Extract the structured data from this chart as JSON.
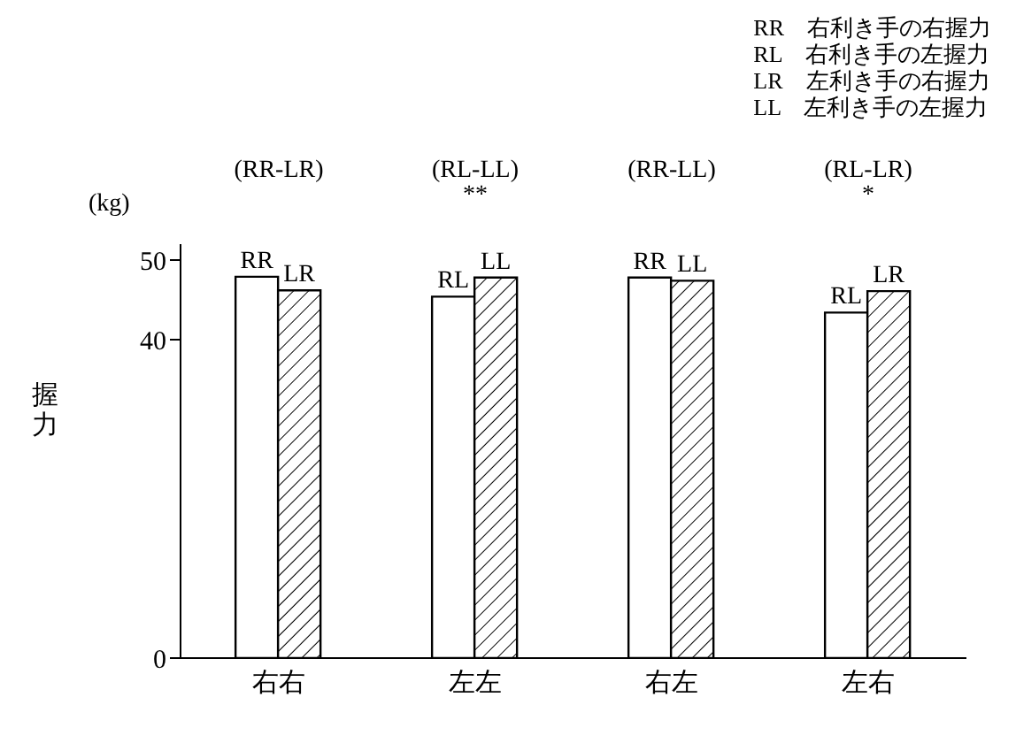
{
  "chart_data": {
    "type": "bar",
    "ylabel": "握力",
    "categories": [
      "右右",
      "左左",
      "右左",
      "左右"
    ],
    "series": [
      {
        "color": "#ffffff",
        "values": [
          47.9,
          45.4,
          47.8,
          43.4
        ],
        "value_labels": [
          "RR",
          "RL",
          "RR",
          "RL"
        ]
      },
      {
        "color": "#000000",
        "values": [
          46.2,
          47.8,
          47.4,
          46.1
        ],
        "value_labels": [
          "LR",
          "LL",
          "LL",
          "LR"
        ]
      }
    ],
    "ylim": [
      0,
      52
    ],
    "yticks": [
      0,
      40,
      50
    ],
    "grid": false,
    "legend": false,
    "annotations": [
      "(kg)",
      "RR　右利き手の右握力",
      "RL　右利き手の左握力",
      "LR　左利き手の右握力",
      "LL　左利き手の左握力",
      "(RR-LR)",
      "(RL-LL)\n**",
      "(RR-LL)",
      "(RL-LR)\n*"
    ]
  }
}
